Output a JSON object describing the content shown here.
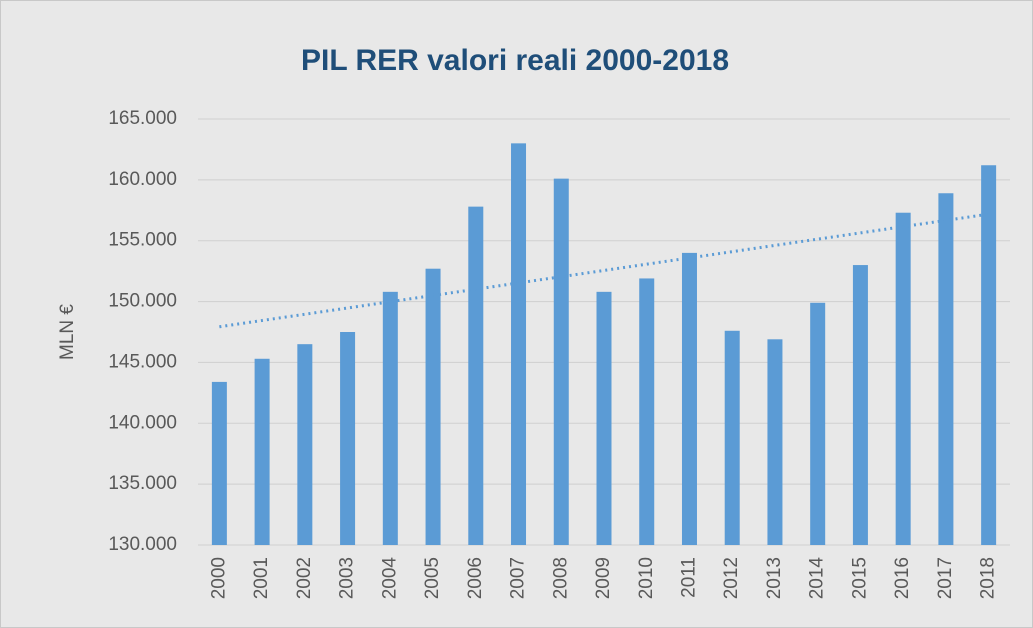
{
  "chart_data": {
    "type": "bar",
    "title": "PIL RER valori reali 2000-2018",
    "y_label": "MLN €",
    "categories": [
      "2000",
      "2001",
      "2002",
      "2003",
      "2004",
      "2005",
      "2006",
      "2007",
      "2008",
      "2009",
      "2010",
      "2011",
      "2012",
      "2013",
      "2014",
      "2015",
      "2016",
      "2017",
      "2018"
    ],
    "values": [
      143400,
      145300,
      146500,
      147500,
      150800,
      152700,
      157800,
      163000,
      160100,
      150800,
      151900,
      154000,
      147600,
      146900,
      149900,
      153000,
      157300,
      158900,
      161200
    ],
    "color": "#5b9bd5",
    "trendline": "linear",
    "ylim": [
      130000,
      165000
    ],
    "yticks": [
      {
        "value": 130000,
        "label": "130.000"
      },
      {
        "value": 135000,
        "label": "135.000"
      },
      {
        "value": 140000,
        "label": "140.000"
      },
      {
        "value": 145000,
        "label": "145.000"
      },
      {
        "value": 150000,
        "label": "150.000"
      },
      {
        "value": 155000,
        "label": "155.000"
      },
      {
        "value": 160000,
        "label": "160.000"
      },
      {
        "value": 165000,
        "label": "165.000"
      }
    ],
    "grid": true
  }
}
